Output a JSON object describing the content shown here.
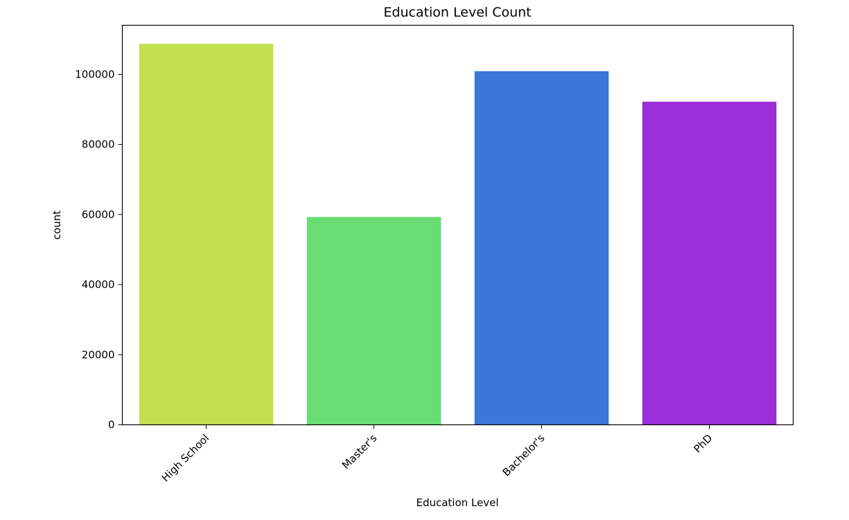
{
  "chart_data": {
    "type": "bar",
    "title": "Education Level Count",
    "xlabel": "Education Level",
    "ylabel": "count",
    "categories": [
      "High School",
      "Master's",
      "Bachelor's",
      "PhD"
    ],
    "values": [
      108700,
      59300,
      100900,
      92200
    ],
    "colors": [
      "#c4e04e",
      "#6adc74",
      "#3b76d8",
      "#9c2fd9"
    ],
    "ylim": [
      0,
      114000
    ],
    "yticks": [
      0,
      20000,
      40000,
      60000,
      80000,
      100000
    ],
    "ytick_labels": [
      "0",
      "20000",
      "40000",
      "60000",
      "80000",
      "100000"
    ],
    "grid": false,
    "legend": "none"
  }
}
